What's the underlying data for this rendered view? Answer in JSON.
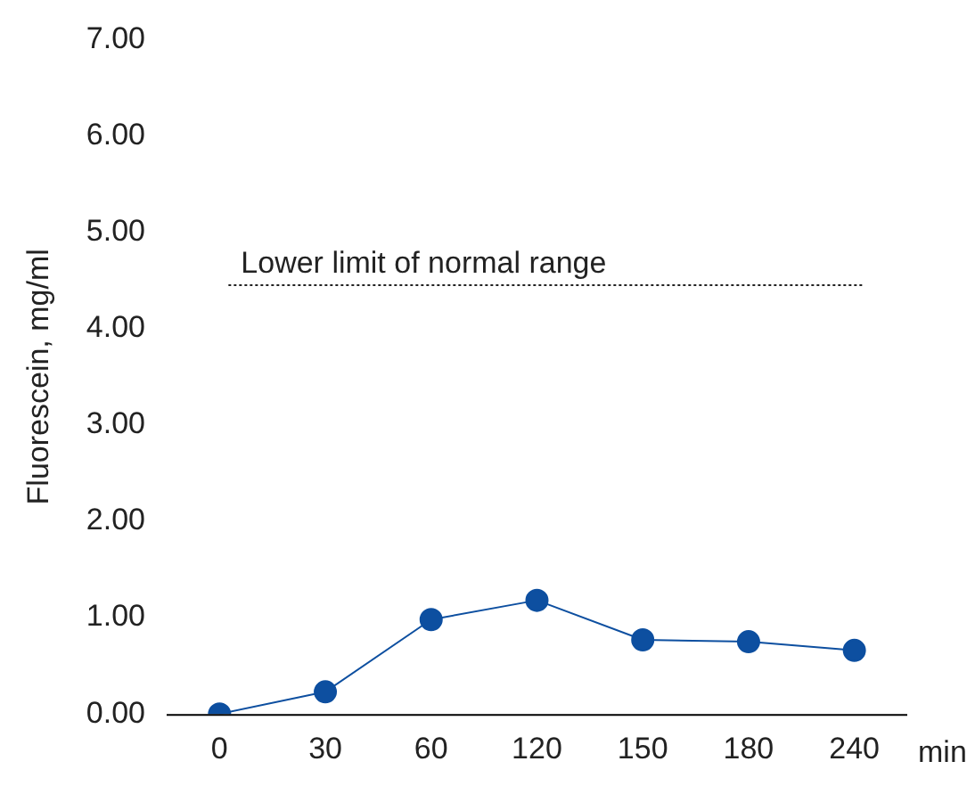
{
  "chart_data": {
    "type": "line",
    "xlabel": "min",
    "ylabel": "Fluorescein, mg/ml",
    "categories": [
      "0",
      "30",
      "60",
      "120",
      "150",
      "180",
      "240"
    ],
    "series": [
      {
        "color": "#0d4fa0",
        "values": [
          0,
          0.23,
          0.98,
          1.18,
          0.77,
          0.75,
          0.66
        ]
      }
    ],
    "ylim": [
      0,
      7
    ],
    "yticks": [
      {
        "value": 0,
        "label": "0.00"
      },
      {
        "value": 1,
        "label": "1.00"
      },
      {
        "value": 2,
        "label": "2.00"
      },
      {
        "value": 3,
        "label": "3.00"
      },
      {
        "value": 4,
        "label": "4.00"
      },
      {
        "value": 5,
        "label": "5.00"
      },
      {
        "value": 6,
        "label": "6.00"
      },
      {
        "value": 7,
        "label": "7.00"
      }
    ],
    "ref_lines": [
      {
        "axis": "y",
        "value": 4.45,
        "label": "Lower limit of normal range",
        "color": "#222222",
        "line_style": "dotted"
      }
    ],
    "marker": "circle",
    "line_style": "solid",
    "grid": false,
    "legend": false
  }
}
